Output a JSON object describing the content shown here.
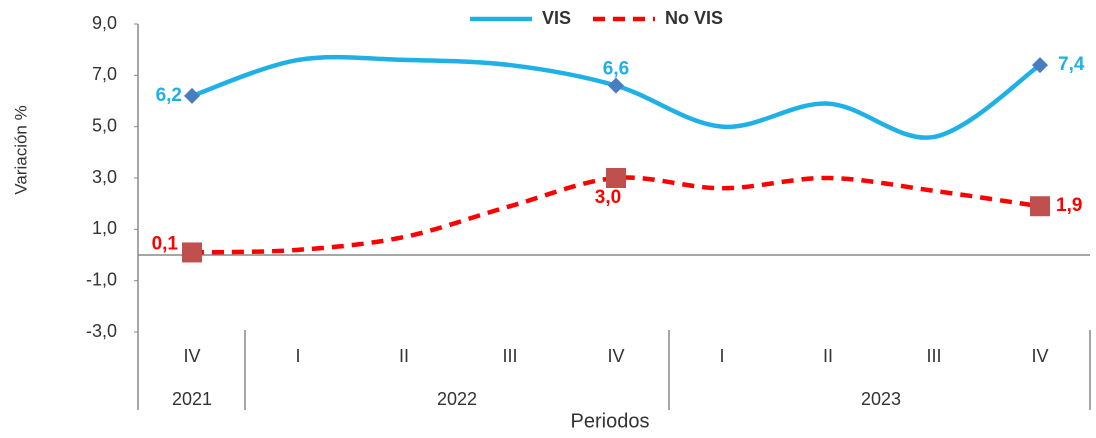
{
  "chart_data": {
    "type": "line",
    "y_label": "Variación %",
    "x_label": "Periodos",
    "categories": [
      "IV",
      "I",
      "II",
      "III",
      "IV",
      "I",
      "II",
      "III",
      "IV"
    ],
    "groups": [
      "2021",
      "2022",
      "2023"
    ],
    "group_sizes": [
      1,
      4,
      4
    ],
    "series": [
      {
        "name": "VIS",
        "color": "#1fb1e6",
        "marker_color": "#4a7cc0",
        "marker": "diamond",
        "dash": false,
        "values": [
          6.2,
          7.6,
          7.6,
          7.4,
          6.6,
          5.0,
          5.9,
          4.6,
          7.4
        ],
        "value_labels": [
          "6,2",
          null,
          null,
          null,
          "6,6",
          null,
          null,
          null,
          "7,4"
        ]
      },
      {
        "name": "No VIS",
        "color": "#ff0000",
        "marker_color": "#c0504d",
        "marker": "square",
        "dash": true,
        "values": [
          0.1,
          0.2,
          0.7,
          1.9,
          3.0,
          2.6,
          3.0,
          2.5,
          1.9
        ],
        "value_labels": [
          "0,1",
          null,
          null,
          null,
          "3,0",
          null,
          null,
          null,
          "1,9"
        ]
      }
    ],
    "ylim": [
      -3,
      9
    ],
    "yticks": [
      {
        "value": -3,
        "label": "-3,0"
      },
      {
        "value": -1,
        "label": "-1,0"
      },
      {
        "value": 1,
        "label": "1,0"
      },
      {
        "value": 3,
        "label": "3,0"
      },
      {
        "value": 5,
        "label": "5,0"
      },
      {
        "value": 7,
        "label": "7,0"
      },
      {
        "value": 9,
        "label": "9,0"
      }
    ],
    "grid": false,
    "legend": "top"
  }
}
